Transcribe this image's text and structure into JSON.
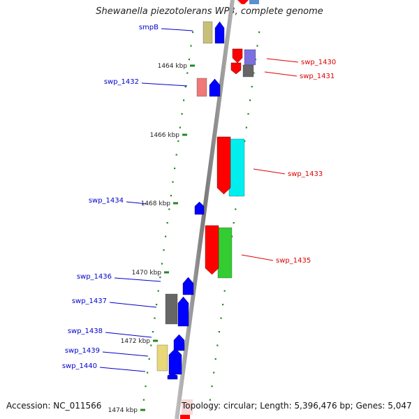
{
  "title": "Shewanella piezotolerans WP3, complete genome",
  "accession_label": "Accession: NC_011566",
  "summary_label": "Topology: circular; Length: 5,396,476 bp; Genes: 5,047",
  "scale": {
    "ticks": [
      {
        "label": "1464 kbp",
        "kbp": 1464
      },
      {
        "label": "1466 kbp",
        "kbp": 1466
      },
      {
        "label": "1468 kbp",
        "kbp": 1468
      },
      {
        "label": "1470 kbp",
        "kbp": 1470
      },
      {
        "label": "1472 kbp",
        "kbp": 1472
      },
      {
        "label": "1474 kbp",
        "kbp": 1474
      }
    ]
  },
  "colors": {
    "backbone": "#888888",
    "reverse_label": "#0000cc",
    "forward_label": "#dd0000",
    "dots": "#228822"
  },
  "genes_reverse": [
    {
      "name": "smpB",
      "color": "#0000ff",
      "cog_color": "#c8c07a"
    },
    {
      "name": "swp_1432",
      "color": "#0000ff",
      "cog_color": "#f07878"
    },
    {
      "name": "swp_1434",
      "color": "#0000ff",
      "cog_color": ""
    },
    {
      "name": "swp_1436",
      "color": "#0000ff",
      "cog_color": ""
    },
    {
      "name": "swp_1437",
      "color": "#0000ff",
      "cog_color": "#666666"
    },
    {
      "name": "swp_1438",
      "color": "#0000ff",
      "cog_color": ""
    },
    {
      "name": "swp_1439",
      "color": "#0000ff",
      "cog_color": "#e8d878"
    },
    {
      "name": "swp_1440",
      "color": "#0000ff",
      "cog_color": ""
    }
  ],
  "genes_forward": [
    {
      "name": "swp_1430",
      "color": "#ff0000",
      "cog_color": "#7a70e0"
    },
    {
      "name": "swp_1431",
      "color": "#ff0000",
      "cog_color": "#666666"
    },
    {
      "name": "swp_1433",
      "color": "#ff0000",
      "cog_color": "#00eeee"
    },
    {
      "name": "swp_1435",
      "color": "#ff0000",
      "cog_color": "#33cc33"
    }
  ]
}
